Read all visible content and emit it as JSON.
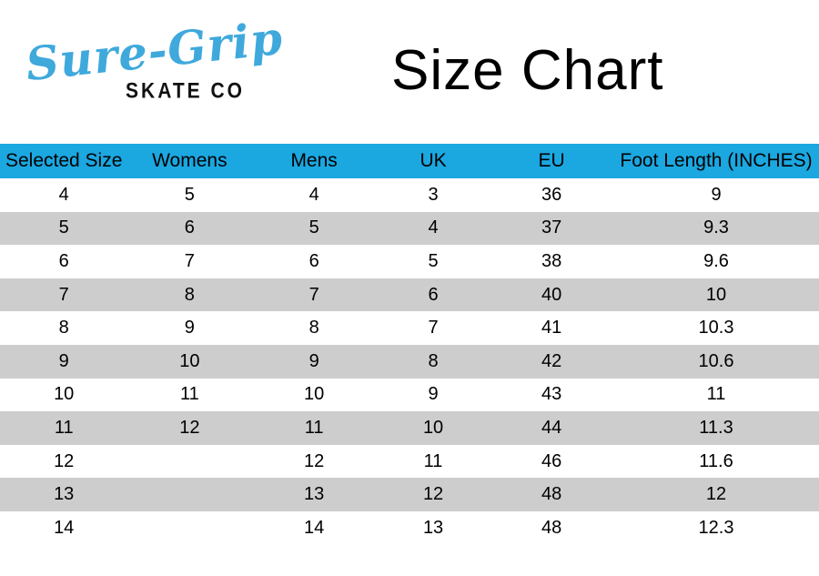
{
  "logo": {
    "brand": "Sure-Grip",
    "subtitle": "SKATE CO",
    "brand_color": "#3FA9DC"
  },
  "title": "Size Chart",
  "chart_data": {
    "type": "table",
    "title": "Size Chart",
    "header_bg": "#1BA7E0",
    "stripe_bg": "#CDCDCD",
    "row_stripe_pattern": "white rows odd, gray rows even",
    "columns": [
      "Selected Size",
      "Womens",
      "Mens",
      "UK",
      "EU",
      "Foot Length (INCHES)"
    ],
    "rows": [
      [
        "4",
        "5",
        "4",
        "3",
        "36",
        "9"
      ],
      [
        "5",
        "6",
        "5",
        "4",
        "37",
        "9.3"
      ],
      [
        "6",
        "7",
        "6",
        "5",
        "38",
        "9.6"
      ],
      [
        "7",
        "8",
        "7",
        "6",
        "40",
        "10"
      ],
      [
        "8",
        "9",
        "8",
        "7",
        "41",
        "10.3"
      ],
      [
        "9",
        "10",
        "9",
        "8",
        "42",
        "10.6"
      ],
      [
        "10",
        "11",
        "10",
        "9",
        "43",
        "11"
      ],
      [
        "11",
        "12",
        "11",
        "10",
        "44",
        "11.3"
      ],
      [
        "12",
        "",
        "12",
        "11",
        "46",
        "11.6"
      ],
      [
        "13",
        "",
        "13",
        "12",
        "48",
        "12"
      ],
      [
        "14",
        "",
        "14",
        "13",
        "48",
        "12.3"
      ]
    ]
  }
}
